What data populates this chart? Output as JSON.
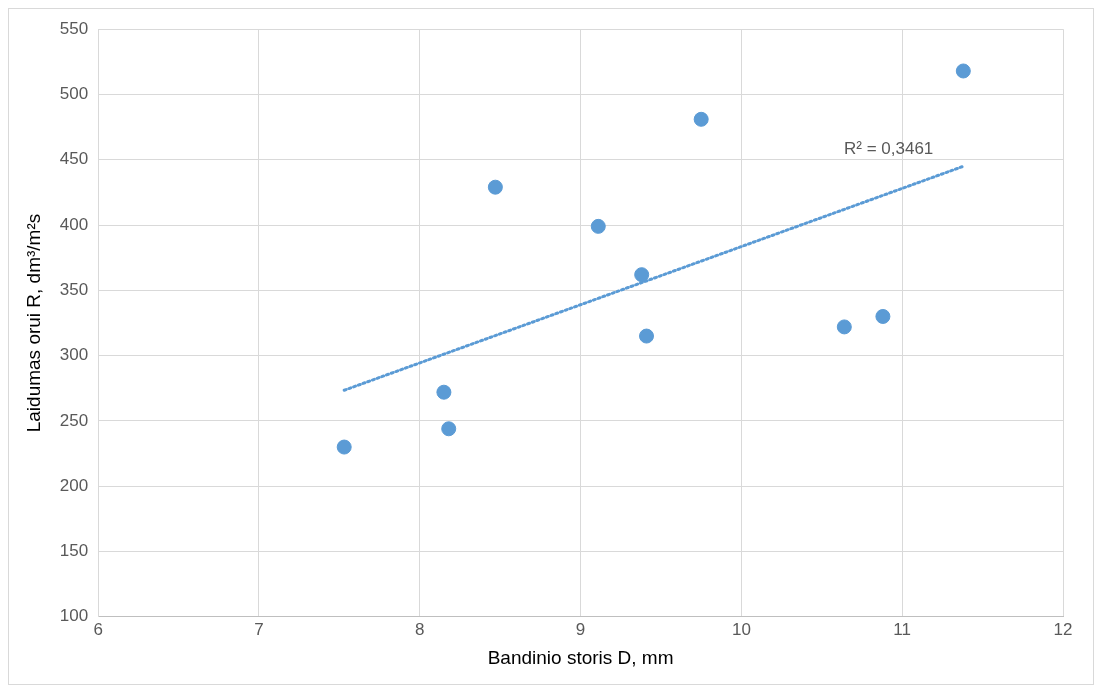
{
  "chart_data": {
    "type": "scatter",
    "xlabel": "Bandinio storis D, mm",
    "ylabel": "Laidumas orui R, dm³/m²s",
    "xlim": [
      6,
      12
    ],
    "xticks": [
      6,
      7,
      8,
      9,
      10,
      11,
      12
    ],
    "ylim": [
      100,
      550
    ],
    "yticks": [
      100,
      150,
      200,
      250,
      300,
      350,
      400,
      450,
      500,
      550
    ],
    "grid": true,
    "marker": "circle",
    "annotations": [
      "R² = 0,3461"
    ],
    "series": [
      {
        "color": "#5b9bd5",
        "x": [
          7.53,
          8.15,
          8.18,
          8.47,
          9.11,
          9.38,
          9.41,
          9.75,
          10.64,
          10.88,
          11.38
        ],
        "values": [
          230,
          272,
          244,
          429,
          399,
          362,
          315,
          481,
          322,
          330,
          518
        ]
      },
      {
        "type": "line",
        "color": "#5b9bd5",
        "line_style": "dotted",
        "marker": "none",
        "x": [
          7.53,
          11.38
        ],
        "values": [
          273.5,
          445
        ]
      }
    ]
  }
}
